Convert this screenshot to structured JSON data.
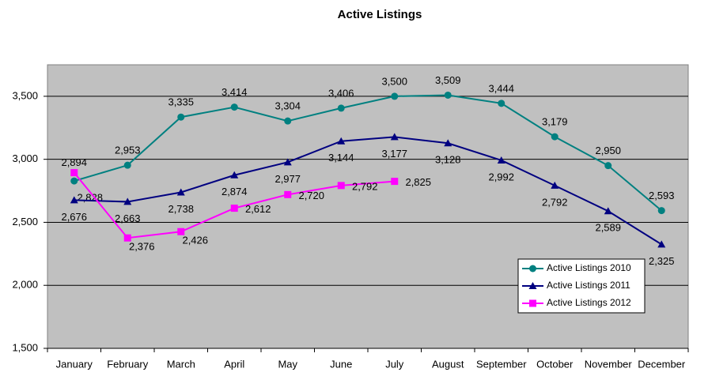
{
  "chart_data": {
    "type": "line",
    "title": "Active Listings",
    "categories": [
      "January",
      "February",
      "March",
      "April",
      "May",
      "June",
      "July",
      "August",
      "September",
      "October",
      "November",
      "December"
    ],
    "series": [
      {
        "name": "Active Listings 2010",
        "color": "#008080",
        "marker": "circle",
        "values": [
          2828,
          2953,
          3335,
          3414,
          3304,
          3406,
          3500,
          3509,
          3444,
          3179,
          2950,
          2593
        ],
        "value_labels": [
          "2,828",
          "2,953",
          "3,335",
          "3,414",
          "3,304",
          "3,406",
          "3,500",
          "3,509",
          "3,444",
          "3,179",
          "2,950",
          "2,593"
        ]
      },
      {
        "name": "Active Listings 2011",
        "color": "#000080",
        "marker": "triangle",
        "values": [
          2676,
          2663,
          2738,
          2874,
          2977,
          3144,
          3177,
          3128,
          2992,
          2792,
          2589,
          2325
        ],
        "value_labels": [
          "2,676",
          "2,663",
          "2,738",
          "2,874",
          "2,977",
          "3,144",
          "3,177",
          "3,128",
          "2,992",
          "2,792",
          "2,589",
          "2,325"
        ]
      },
      {
        "name": "Active Listings 2012",
        "color": "#ff00ff",
        "marker": "square",
        "values": [
          2894,
          2376,
          2426,
          2612,
          2720,
          2792,
          2825,
          null,
          null,
          null,
          null,
          null
        ],
        "value_labels": [
          "2,894",
          "2,376",
          "2,426",
          "2,612",
          "2,720",
          "2,792",
          "2,825",
          null,
          null,
          null,
          null,
          null
        ]
      }
    ],
    "ylim": [
      1500,
      3750
    ],
    "yticks": [
      {
        "value": 1500,
        "label": "1,500"
      },
      {
        "value": 2000,
        "label": "2,000"
      },
      {
        "value": 2500,
        "label": "2,500"
      },
      {
        "value": 3000,
        "label": "3,000"
      },
      {
        "value": 3500,
        "label": "3,500"
      }
    ],
    "grid": true,
    "legend": "lower right",
    "plot_background": "#c0c0c0"
  }
}
